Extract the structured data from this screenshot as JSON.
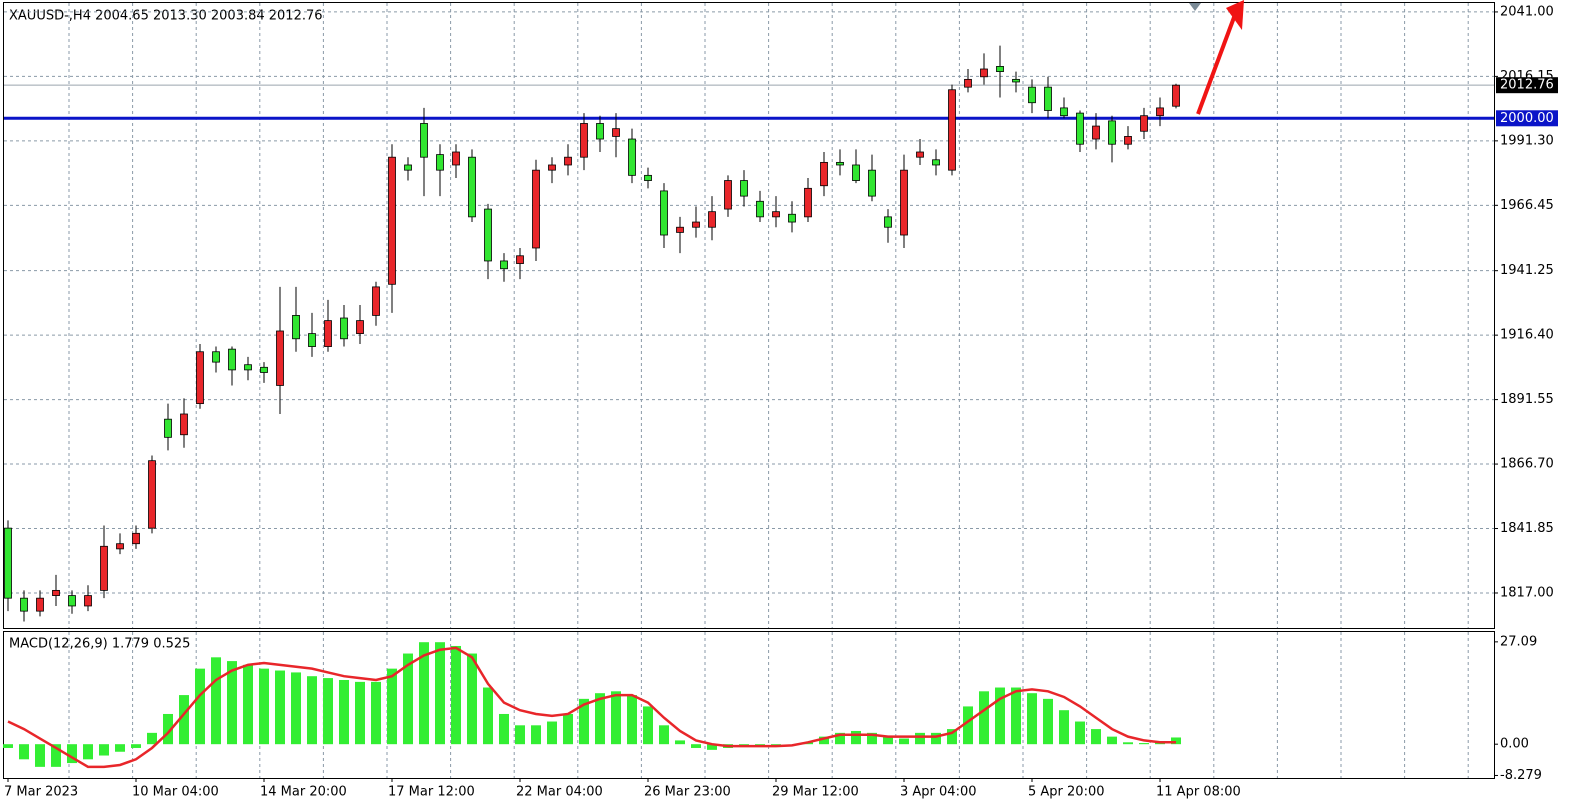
{
  "chart_data": [
    {
      "type": "candlestick",
      "title": "XAUUSD-,H4  2004.65 2013.30 2003.84 2012.76",
      "open": [
        1842,
        1815,
        1810,
        1816,
        1816,
        1812,
        1818,
        1834,
        1836,
        1842,
        1884,
        1878,
        1890,
        1910,
        1911,
        1905,
        1904,
        1897,
        1924,
        1917,
        1912,
        1923,
        1917,
        1924,
        1936,
        1982,
        1998,
        1986,
        1982,
        1985,
        1965,
        1945,
        1944,
        1950,
        1980,
        1982,
        1985,
        1998,
        1993,
        1992,
        1978,
        1972,
        1956,
        1958,
        1958,
        1965,
        1976,
        1968,
        1962,
        1963,
        1962,
        1974,
        1983,
        1982,
        1980,
        1962,
        1955,
        1985,
        1984,
        1980,
        2012,
        2016,
        2020,
        2015,
        2012,
        2012,
        2004,
        2002,
        1992,
        1999,
        1990,
        1995,
        2001,
        2004.65
      ],
      "high": [
        1845,
        1818,
        1818,
        1824,
        1818,
        1820,
        1843,
        1840,
        1843,
        1870,
        1890,
        1892,
        1913,
        1912,
        1912,
        1908,
        1906,
        1935,
        1935,
        1925,
        1930,
        1928,
        1928,
        1937,
        1990,
        1985,
        2004,
        1990,
        1990,
        1988,
        1967,
        1948,
        1950,
        1984,
        1985,
        1990,
        2002,
        2001,
        2002,
        1996,
        1981,
        1975,
        1962,
        1966,
        1970,
        1978,
        1980,
        1972,
        1970,
        1968,
        1977,
        1987,
        1988,
        1988,
        1986,
        1965,
        1986,
        1992,
        1988,
        2013,
        2019,
        2025,
        2028,
        2018,
        2015,
        2016,
        2008,
        2003,
        2002,
        2001,
        1997,
        2004,
        2008,
        2013.3
      ],
      "low": [
        1810,
        1806,
        1808,
        1812,
        1809,
        1810,
        1815,
        1832,
        1834,
        1840,
        1872,
        1873,
        1888,
        1902,
        1897,
        1899,
        1898,
        1886,
        1910,
        1908,
        1910,
        1912,
        1913,
        1920,
        1925,
        1976,
        1970,
        1970,
        1977,
        1960,
        1938,
        1937,
        1938,
        1945,
        1975,
        1978,
        1980,
        1987,
        1985,
        1975,
        1973,
        1950,
        1948,
        1954,
        1953,
        1962,
        1966,
        1960,
        1958,
        1956,
        1960,
        1970,
        1978,
        1975,
        1968,
        1952,
        1950,
        1982,
        1978,
        1978,
        2010,
        2013,
        2008,
        2010,
        2002,
        2000,
        2000,
        1987,
        1988,
        1983,
        1988,
        1992,
        1997,
        2003.84
      ],
      "close": [
        1815,
        1810,
        1815,
        1818,
        1812,
        1816,
        1835,
        1836,
        1840,
        1868,
        1877,
        1886,
        1910,
        1906,
        1903,
        1903,
        1902,
        1918,
        1915,
        1912,
        1922,
        1915,
        1922,
        1935,
        1985,
        1980,
        1985,
        1980,
        1987,
        1962,
        1945,
        1942,
        1947,
        1980,
        1982,
        1985,
        1998,
        1992,
        1996,
        1978,
        1976,
        1955,
        1958,
        1960,
        1964,
        1976,
        1970,
        1962,
        1964,
        1960,
        1973,
        1983,
        1982,
        1976,
        1970,
        1958,
        1980,
        1987,
        1982,
        2011,
        2015,
        2019,
        2018,
        2014,
        2006,
        2003,
        2001,
        1990,
        1997,
        1990,
        1993,
        2001,
        2004,
        2012.76
      ],
      "up_color": "#e8262a",
      "down_color": "#31e631",
      "ylim": [
        1803.5,
        2045.6
      ],
      "yticks": [
        {
          "value": 2041,
          "label": "2041.00"
        },
        {
          "value": 2016.15,
          "label": "2016.15"
        },
        {
          "value": 1991.3,
          "label": "1991.30"
        },
        {
          "value": 1966.45,
          "label": "1966.45"
        },
        1941.25,
        {
          "value": 1916.4,
          "label": "1916.40"
        },
        1891.55,
        {
          "value": 1866.7,
          "label": "1866.70"
        },
        1841.85,
        {
          "value": 1817,
          "label": "1817.00"
        }
      ],
      "price_line": 2012.76,
      "level_line": {
        "value": 2000,
        "label": "2000.00"
      },
      "level_color": "#0a14c8",
      "grid": true
    },
    {
      "type": "macd",
      "title": "MACD(12,26,9) 1.779 0.525",
      "histogram": [
        -1,
        -4,
        -6,
        -6,
        -5,
        -4,
        -3,
        -2,
        -1,
        3,
        8,
        13,
        20,
        23,
        22,
        21,
        20,
        19.5,
        19,
        18,
        17.5,
        17,
        16.5,
        16.5,
        20,
        24,
        27,
        27,
        26,
        24,
        15,
        8,
        5,
        5,
        6,
        8,
        12,
        13.5,
        14,
        13,
        10,
        5,
        1,
        -1,
        -1.5,
        -1,
        -0.5,
        -0.5,
        -0.5,
        0,
        0.5,
        2,
        3,
        3.5,
        3,
        2,
        1.5,
        3,
        3,
        4,
        10,
        14,
        15,
        15,
        13.5,
        12,
        9,
        6,
        4,
        2,
        0.5,
        0.3,
        0.5,
        1.779
      ],
      "signal": [
        6,
        4,
        1.5,
        -1,
        -3.5,
        -6,
        -6,
        -5.5,
        -4,
        -1,
        3,
        8,
        13,
        17,
        19.5,
        21,
        21.5,
        21,
        20.5,
        20,
        19,
        18,
        17.5,
        17,
        18,
        21,
        23.5,
        25,
        25.5,
        23,
        16,
        11,
        9,
        8,
        7.5,
        8,
        10.5,
        12,
        13,
        13,
        11,
        7,
        3.5,
        1,
        0,
        -0.5,
        -0.5,
        -0.5,
        -0.5,
        -0.3,
        0.5,
        1.5,
        2.5,
        2.5,
        2.5,
        2,
        2,
        2,
        2,
        3,
        6,
        9,
        12,
        14,
        14.5,
        14,
        12.5,
        10,
        7,
        4,
        2,
        1,
        0.5,
        0.525
      ],
      "histogram_color": "#33ee33",
      "signal_color": "#e8262a",
      "ylim": [
        -8.95,
        29.7
      ],
      "yticks": [
        27.09,
        {
          "value": 0,
          "label": "0.00"
        },
        -8.279
      ],
      "xticks": [
        {
          "value": 0,
          "label": "7 Mar 2023"
        },
        {
          "value": 8,
          "label": "10 Mar 04:00"
        },
        {
          "value": 16,
          "label": "14 Mar 20:00"
        },
        {
          "value": 24,
          "label": "17 Mar 12:00"
        },
        {
          "value": 32,
          "label": "22 Mar 04:00"
        },
        {
          "value": 40,
          "label": "26 Mar 23:00"
        },
        {
          "value": 48,
          "label": "29 Mar 12:00"
        },
        {
          "value": 56,
          "label": "3 Apr 04:00"
        },
        {
          "value": 64,
          "label": "5 Apr 20:00"
        },
        {
          "value": 72,
          "label": "11 Apr 08:00"
        }
      ],
      "grid": true
    }
  ]
}
